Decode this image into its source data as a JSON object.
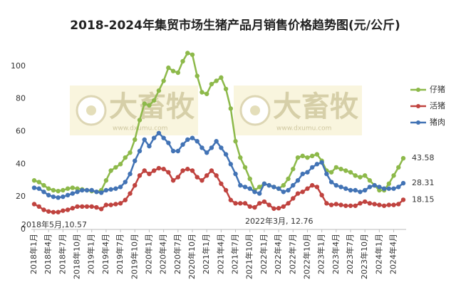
{
  "chart_data": {
    "type": "line",
    "title": "2018-2024年集贸市场生猪产品月销售价格趋势图(元/公斤)",
    "categories": [
      "2018年1月",
      null,
      null,
      "2018年4月",
      null,
      null,
      "2018年7月",
      null,
      null,
      "2018年10月",
      null,
      null,
      "2019年1月",
      null,
      null,
      "2019年4月",
      null,
      null,
      "2019年7月",
      null,
      null,
      "2019年10月",
      null,
      null,
      "2020年1月",
      null,
      null,
      "2020年4月",
      null,
      null,
      "2020年7月",
      null,
      null,
      "2020年10月",
      null,
      null,
      "2021年1月",
      null,
      null,
      "2021年4月",
      null,
      null,
      "2021年7月",
      null,
      null,
      "2021年10月",
      null,
      null,
      "2022年1月",
      null,
      null,
      "2022年4月",
      null,
      null,
      "2022年7月",
      null,
      null,
      "2022年10月",
      null,
      null,
      "2023年1月",
      null,
      null,
      "2023年4月",
      null,
      null,
      "2023年7月",
      null,
      null,
      "2023年10月",
      null,
      null,
      "2024年1月",
      null,
      null,
      "2024年4月",
      null,
      null
    ],
    "series": [
      {
        "name": "仔猪",
        "color": "#8db94a",
        "values": [
          30,
          29,
          27,
          25,
          24,
          23.5,
          24,
          25,
          25.5,
          25,
          24.5,
          24,
          23.5,
          23,
          24,
          30,
          36,
          38,
          40,
          44,
          47,
          55,
          67,
          77,
          76,
          79,
          85,
          91,
          99,
          97,
          96,
          103,
          108,
          107,
          94,
          84,
          83,
          89,
          91,
          93,
          86,
          74,
          54,
          44,
          38,
          31,
          24,
          26,
          28,
          27,
          26,
          25,
          27,
          31,
          37,
          44,
          45,
          44,
          45,
          46,
          42,
          36,
          35,
          38,
          37,
          36,
          35,
          33,
          32,
          33,
          30,
          27,
          24,
          24,
          28,
          33,
          38,
          43.58
        ]
      },
      {
        "name": "活猪",
        "color": "#c0433f",
        "values": [
          15.5,
          14,
          12,
          11,
          10.57,
          10.6,
          11.5,
          12,
          13,
          14,
          14,
          14,
          14,
          13.5,
          12.5,
          15,
          15,
          15.5,
          16,
          18,
          22,
          27,
          33,
          36,
          34,
          36,
          37.5,
          37,
          35,
          30,
          32,
          36,
          37,
          36,
          32,
          30,
          33,
          36,
          33,
          28,
          24,
          18,
          16,
          16,
          16,
          14,
          13.5,
          16,
          17,
          15,
          12.76,
          13,
          14,
          16,
          19,
          22,
          23,
          25,
          27,
          26,
          21,
          16,
          15,
          15.5,
          15,
          14.5,
          14.5,
          14.5,
          16,
          17,
          16,
          15.5,
          15,
          14.5,
          15,
          15,
          15.5,
          18.15
        ]
      },
      {
        "name": "猪肉",
        "color": "#4273b5",
        "values": [
          25.5,
          25,
          23,
          21,
          20,
          19.5,
          20,
          21,
          22,
          23,
          24,
          24,
          24,
          23,
          22.5,
          24,
          24.5,
          25,
          26,
          29,
          34,
          42,
          48,
          55,
          51,
          56,
          59,
          56,
          53,
          48,
          48,
          52,
          55,
          56,
          54,
          50,
          47,
          50,
          54,
          50,
          46,
          40,
          34,
          27,
          26,
          25,
          23,
          22,
          28,
          27,
          26,
          25,
          23,
          24,
          27,
          30,
          34,
          35,
          38,
          40,
          41,
          34,
          29,
          27,
          26,
          25,
          24,
          24,
          23,
          24,
          26,
          27,
          26,
          25,
          25,
          25,
          26,
          28.31
        ]
      }
    ],
    "ylim": [
      0,
      120
    ],
    "yticks": [
      0,
      20,
      40,
      60,
      80,
      100
    ],
    "grid": false,
    "legend": "right",
    "end_labels": true,
    "annotations": [
      "2018年5月,10.57",
      "2022年3月, 12.76"
    ],
    "watermark": {
      "text": "大畜牧",
      "url": "www.dxumu.com"
    }
  }
}
